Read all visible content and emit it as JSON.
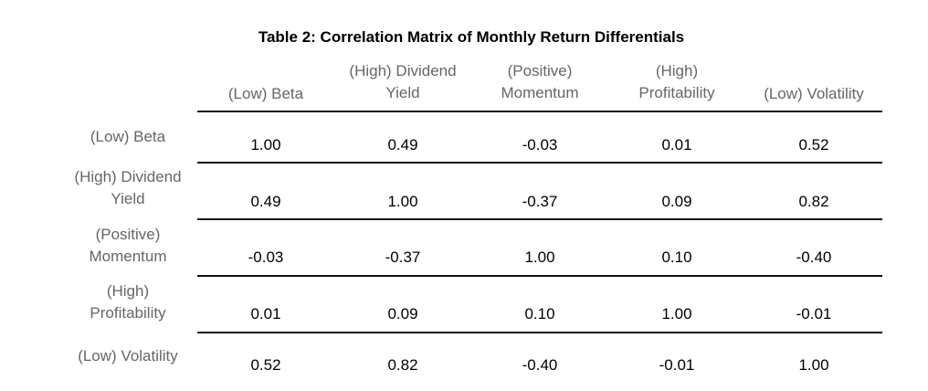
{
  "table": {
    "title": "Table 2: Correlation Matrix of Monthly Return Differentials",
    "columns": [
      "(Low) Beta",
      "(High) Dividend\nYield",
      "(Positive)\nMomentum",
      "(High)\nProfitability",
      "(Low) Volatility"
    ],
    "rows": [
      {
        "label": "(Low) Beta",
        "values": [
          "1.00",
          "0.49",
          "-0.03",
          "0.01",
          "0.52"
        ]
      },
      {
        "label": "(High) Dividend\nYield",
        "values": [
          "0.49",
          "1.00",
          "-0.37",
          "0.09",
          "0.82"
        ]
      },
      {
        "label": "(Positive)\nMomentum",
        "values": [
          "-0.03",
          "-0.37",
          "1.00",
          "0.10",
          "-0.40"
        ]
      },
      {
        "label": "(High)\nProfitability",
        "values": [
          "0.01",
          "0.09",
          "0.10",
          "1.00",
          "-0.01"
        ]
      },
      {
        "label": "(Low) Volatility",
        "values": [
          "0.52",
          "0.82",
          "-0.40",
          "-0.01",
          "1.00"
        ]
      }
    ]
  }
}
